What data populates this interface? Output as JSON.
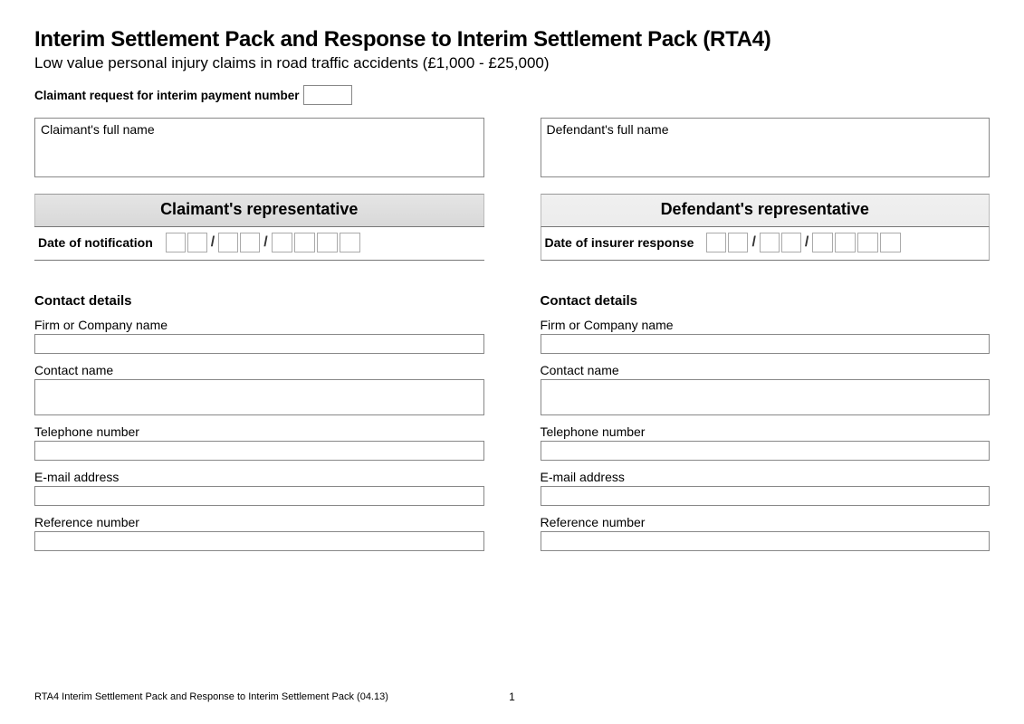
{
  "header": {
    "title": "Interim Settlement Pack and Response to Interim Settlement Pack (RTA4)",
    "subtitle": "Low value personal injury claims in road traffic accidents (£1,000 - £25,000)",
    "request_label": "Claimant request for interim payment number",
    "request_value": ""
  },
  "claimant": {
    "name_label": "Claimant's full name",
    "name_value": "",
    "rep_header": "Claimant's representative",
    "date_label": "Date of notification",
    "date": {
      "d1": "",
      "d2": "",
      "m1": "",
      "m2": "",
      "y1": "",
      "y2": "",
      "y3": "",
      "y4": ""
    },
    "contact_title": "Contact details",
    "fields": {
      "firm_label": "Firm or Company name",
      "firm_value": "",
      "contact_label": "Contact name",
      "contact_value": "",
      "tel_label": "Telephone number",
      "tel_value": "",
      "email_label": "E-mail address",
      "email_value": "",
      "ref_label": "Reference number",
      "ref_value": ""
    }
  },
  "defendant": {
    "name_label": "Defendant's full name",
    "name_value": "",
    "rep_header": "Defendant's representative",
    "date_label": "Date of insurer response",
    "date": {
      "d1": "",
      "d2": "",
      "m1": "",
      "m2": "",
      "y1": "",
      "y2": "",
      "y3": "",
      "y4": ""
    },
    "contact_title": "Contact details",
    "fields": {
      "firm_label": "Firm or Company name",
      "firm_value": "",
      "contact_label": "Contact name",
      "contact_value": "",
      "tel_label": "Telephone number",
      "tel_value": "",
      "email_label": "E-mail address",
      "email_value": "",
      "ref_label": "Reference number",
      "ref_value": ""
    }
  },
  "footer": {
    "text": "RTA4 Interim Settlement Pack and Response to Interim Settlement Pack (04.13)",
    "page": "1"
  },
  "style": {
    "header_bg_left": "#dcdcdc",
    "header_bg_right": "#eeeeee",
    "border_color": "#888888",
    "background": "#ffffff",
    "text_color": "#000000"
  }
}
